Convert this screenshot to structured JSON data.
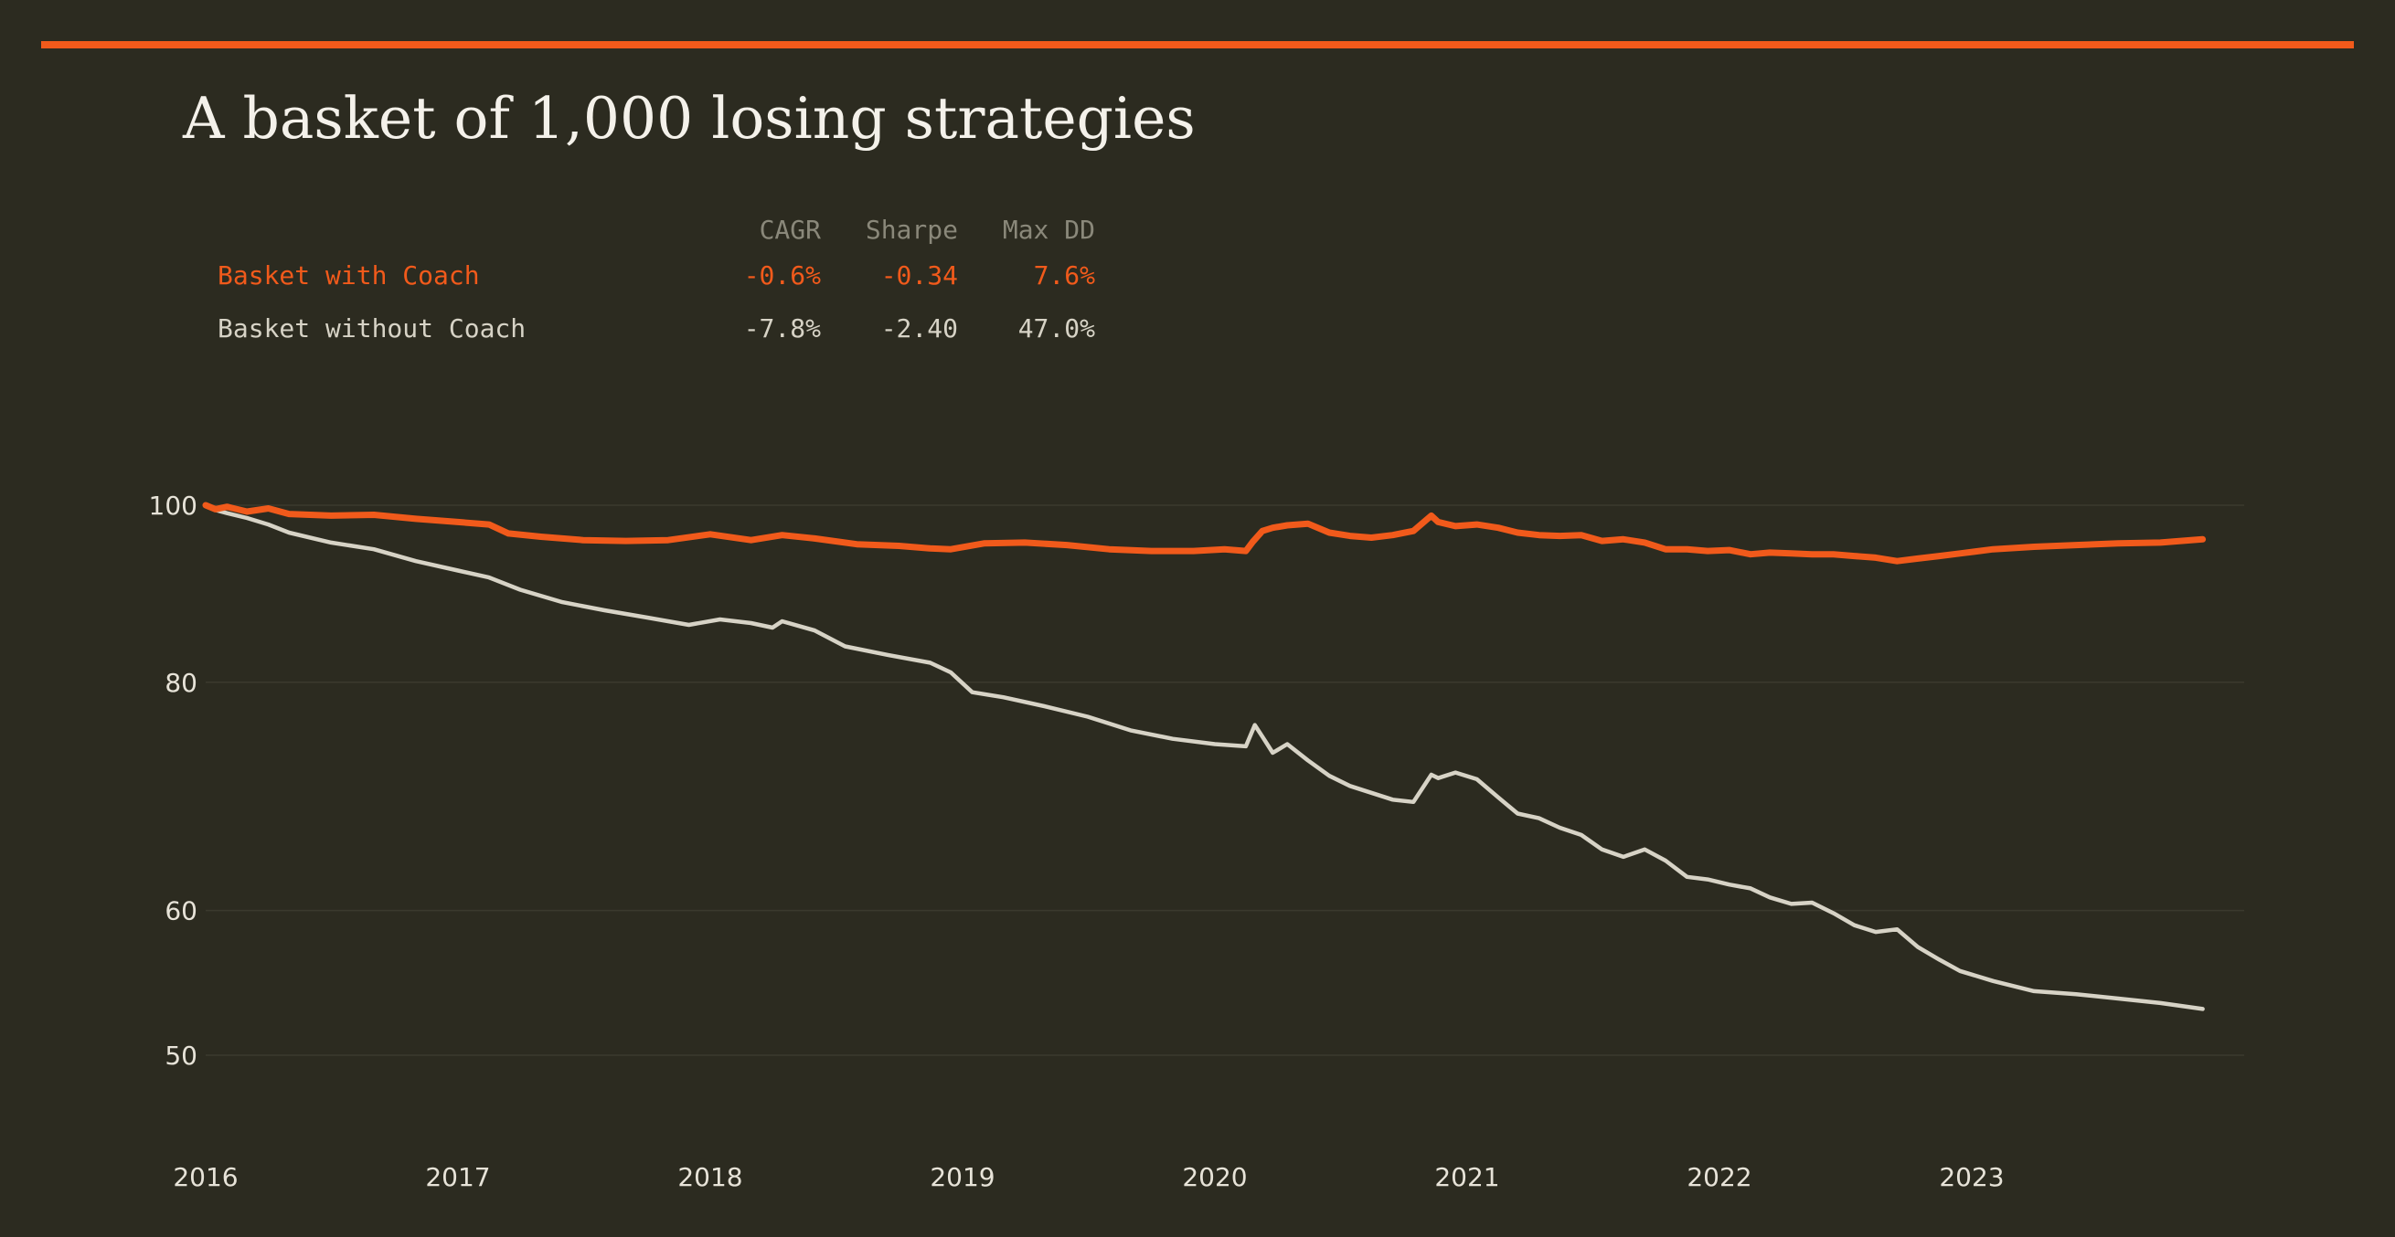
{
  "title": "A basket of 1,000 losing strategies",
  "stats_table": {
    "headers": [
      "CAGR",
      "Sharpe",
      "Max DD"
    ],
    "rows": [
      {
        "name": "Basket with Coach",
        "cagr": "-0.6%",
        "sharpe": "-0.34",
        "max_dd": "7.6%"
      },
      {
        "name": "Basket without Coach",
        "cagr": "-7.8%",
        "sharpe": "-2.40",
        "max_dd": "47.0%"
      }
    ]
  },
  "colors": {
    "background": "#2c2b20",
    "accent": "#f15a1b",
    "without_coach": "#d7d3c6",
    "grid": "#3b3a2e",
    "text": "#e7e3d8"
  },
  "chart_data": {
    "type": "line",
    "title": "A basket of 1,000 losing strategies",
    "y_scale": "log",
    "ylim": [
      44,
      108
    ],
    "y_ticks": [
      100,
      80,
      60,
      50
    ],
    "x_ticks": [
      "2016",
      "2017",
      "2018",
      "2019",
      "2020",
      "2021",
      "2022",
      "2023"
    ],
    "grid": "horizontal",
    "series": [
      {
        "name": "Basket with Coach",
        "color": "#f15a1b",
        "x": [
          "2016-01-01",
          "2016-01-15",
          "2016-02-01",
          "2016-03-01",
          "2016-04-01",
          "2016-05-01",
          "2016-07-01",
          "2016-09-01",
          "2016-11-01",
          "2017-01-01",
          "2017-02-15",
          "2017-03-15",
          "2017-05-01",
          "2017-07-01",
          "2017-09-01",
          "2017-11-01",
          "2018-01-01",
          "2018-03-01",
          "2018-04-15",
          "2018-06-01",
          "2018-08-01",
          "2018-10-01",
          "2018-11-15",
          "2018-12-15",
          "2019-02-01",
          "2019-04-01",
          "2019-06-01",
          "2019-08-01",
          "2019-10-01",
          "2019-12-01",
          "2020-01-15",
          "2020-02-15",
          "2020-02-25",
          "2020-03-10",
          "2020-03-25",
          "2020-04-15",
          "2020-05-15",
          "2020-06-15",
          "2020-07-15",
          "2020-08-15",
          "2020-09-15",
          "2020-10-15",
          "2020-11-10",
          "2020-11-20",
          "2020-12-15",
          "2021-01-15",
          "2021-02-15",
          "2021-03-15",
          "2021-04-15",
          "2021-05-15",
          "2021-06-15",
          "2021-07-15",
          "2021-08-15",
          "2021-09-15",
          "2021-10-15",
          "2021-11-15",
          "2021-12-15",
          "2022-01-15",
          "2022-02-15",
          "2022-03-15",
          "2022-04-15",
          "2022-05-15",
          "2022-06-15",
          "2022-07-15",
          "2022-08-15",
          "2022-09-15",
          "2022-10-15",
          "2022-11-15",
          "2022-12-15",
          "2023-02-01",
          "2023-04-01",
          "2023-06-01",
          "2023-08-01",
          "2023-10-01",
          "2023-12-01"
        ],
        "y": [
          100,
          99.5,
          99.8,
          99.2,
          99.6,
          98.9,
          98.7,
          98.8,
          98.3,
          97.9,
          97.6,
          96.5,
          96.1,
          95.7,
          95.6,
          95.7,
          96.4,
          95.7,
          96.3,
          95.9,
          95.2,
          95.0,
          94.7,
          94.6,
          95.3,
          95.4,
          95.1,
          94.6,
          94.4,
          94.4,
          94.6,
          94.4,
          95.5,
          96.8,
          97.2,
          97.5,
          97.7,
          96.6,
          96.2,
          96.0,
          96.3,
          96.8,
          98.7,
          97.9,
          97.4,
          97.6,
          97.2,
          96.6,
          96.3,
          96.2,
          96.3,
          95.6,
          95.8,
          95.4,
          94.6,
          94.6,
          94.4,
          94.5,
          94.0,
          94.2,
          94.1,
          94.0,
          94.0,
          93.8,
          93.6,
          93.2,
          93.5,
          93.8,
          94.1,
          94.6,
          94.9,
          95.1,
          95.3,
          95.4,
          95.8
        ]
      },
      {
        "name": "Basket without Coach",
        "color": "#d7d3c6",
        "x": [
          "2016-01-01",
          "2016-01-15",
          "2016-02-01",
          "2016-03-01",
          "2016-04-01",
          "2016-05-01",
          "2016-07-01",
          "2016-09-01",
          "2016-11-01",
          "2017-01-01",
          "2017-02-15",
          "2017-04-01",
          "2017-06-01",
          "2017-08-01",
          "2017-10-01",
          "2017-12-01",
          "2018-01-15",
          "2018-03-01",
          "2018-04-01",
          "2018-04-15",
          "2018-06-01",
          "2018-07-15",
          "2018-09-15",
          "2018-11-15",
          "2018-12-15",
          "2019-01-15",
          "2019-03-01",
          "2019-05-01",
          "2019-07-01",
          "2019-09-01",
          "2019-11-01",
          "2020-01-01",
          "2020-02-15",
          "2020-02-28",
          "2020-03-10",
          "2020-03-25",
          "2020-04-15",
          "2020-05-15",
          "2020-06-15",
          "2020-07-15",
          "2020-08-15",
          "2020-09-15",
          "2020-10-15",
          "2020-11-10",
          "2020-11-20",
          "2020-12-15",
          "2021-01-15",
          "2021-02-15",
          "2021-03-15",
          "2021-04-15",
          "2021-05-15",
          "2021-06-15",
          "2021-07-15",
          "2021-08-15",
          "2021-09-15",
          "2021-10-15",
          "2021-11-15",
          "2021-12-15",
          "2022-01-15",
          "2022-02-15",
          "2022-03-15",
          "2022-04-15",
          "2022-05-15",
          "2022-06-15",
          "2022-07-15",
          "2022-08-15",
          "2022-09-15",
          "2022-10-15",
          "2022-11-15",
          "2022-12-15",
          "2023-02-01",
          "2023-04-01",
          "2023-06-01",
          "2023-08-01",
          "2023-10-01",
          "2023-12-01"
        ],
        "y": [
          100,
          99.4,
          99.0,
          98.4,
          97.6,
          96.6,
          95.4,
          94.6,
          93.2,
          92.1,
          91.3,
          89.9,
          88.5,
          87.6,
          86.8,
          86.0,
          86.6,
          86.2,
          85.7,
          86.4,
          85.4,
          83.7,
          82.8,
          82.0,
          81.0,
          79.0,
          78.5,
          77.6,
          76.6,
          75.3,
          74.5,
          74.0,
          73.8,
          75.8,
          74.7,
          73.2,
          74.0,
          72.5,
          71.1,
          70.2,
          69.6,
          69.0,
          68.8,
          71.2,
          70.9,
          71.4,
          70.8,
          69.2,
          67.8,
          67.4,
          66.6,
          66.0,
          64.8,
          64.2,
          64.8,
          63.9,
          62.6,
          62.4,
          62.0,
          61.7,
          61.0,
          60.5,
          60.6,
          59.8,
          58.9,
          58.4,
          58.6,
          57.3,
          56.4,
          55.6,
          54.9,
          54.2,
          54.0,
          53.7,
          53.4,
          53.0
        ]
      }
    ]
  }
}
